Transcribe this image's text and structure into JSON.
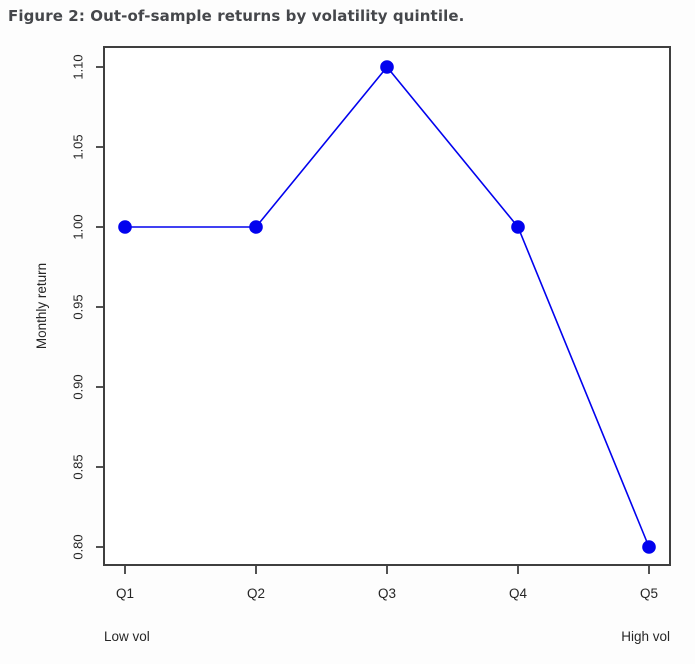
{
  "title": "Figure 2: Out-of-sample returns by volatility quintile.",
  "chart_data": {
    "type": "line",
    "categories": [
      "Q1",
      "Q2",
      "Q3",
      "Q4",
      "Q5"
    ],
    "values": [
      1.0,
      1.0,
      1.1,
      1.0,
      0.8
    ],
    "title": "Figure 2: Out-of-sample returns by volatility quintile.",
    "xlabel": "",
    "ylabel": "Monthly return",
    "ylim": [
      0.8,
      1.1
    ],
    "yticks": [
      "0.80",
      "0.85",
      "0.90",
      "0.95",
      "1.00",
      "1.05",
      "1.10"
    ],
    "ytick_values": [
      0.8,
      0.85,
      0.9,
      0.95,
      1.0,
      1.05,
      1.1
    ],
    "x_annotation_left": "Low vol",
    "x_annotation_right": "High vol",
    "grid": false,
    "legend": "none",
    "marker": "filled-circle"
  },
  "colors": {
    "series": "#0202ee",
    "marker": "#0202ee",
    "axis": "#3f3f3f",
    "tick_text": "#2b2b2b",
    "title_text": "#45474b",
    "background": "#fdfdfd"
  }
}
